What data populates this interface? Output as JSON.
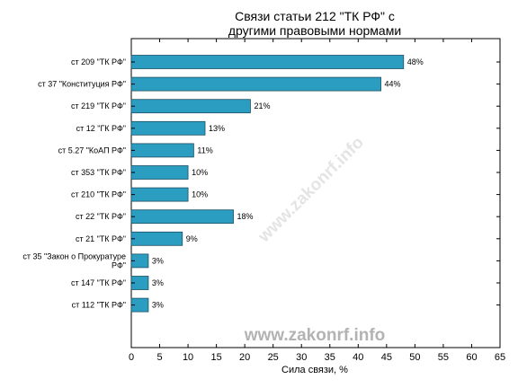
{
  "chart_data": {
    "type": "bar",
    "orientation": "horizontal",
    "title_lines": [
      "Связи статьи 212 \"ТК РФ\" с",
      "другими правовыми нормами"
    ],
    "xlabel": "Сила связи, %",
    "ylabel": "",
    "xlim": [
      0,
      65
    ],
    "xticks": [
      0,
      5,
      10,
      15,
      20,
      25,
      30,
      35,
      40,
      45,
      50,
      55,
      60,
      65
    ],
    "grid": false,
    "bar_color": "#2a9dc0",
    "categories": [
      [
        "ст 209 \"ТК РФ\""
      ],
      [
        "ст 37 \"Конституция РФ\""
      ],
      [
        "ст 219 \"ТК РФ\""
      ],
      [
        "ст 12 \"ГК РФ\""
      ],
      [
        "ст 5.27 \"КоАП РФ\""
      ],
      [
        "ст 353 \"ТК РФ\""
      ],
      [
        "ст 210 \"ТК РФ\""
      ],
      [
        "ст 22 \"ТК РФ\""
      ],
      [
        "ст 21 \"ТК РФ\""
      ],
      [
        "ст 35 \"Закон о Прокуратуре",
        "РФ\""
      ],
      [
        "ст 147 \"ТК РФ\""
      ],
      [
        "ст 112 \"ТК РФ\""
      ]
    ],
    "values": [
      48,
      44,
      21,
      13,
      11,
      10,
      10,
      18,
      9,
      3,
      3,
      3
    ],
    "value_labels": [
      "48%",
      "44%",
      "21%",
      "13%",
      "11%",
      "10%",
      "10%",
      "18%",
      "9%",
      "3%",
      "3%",
      "3%"
    ]
  },
  "watermark": {
    "main": "www.zakonrf.info",
    "diagonal": "www.zakonrf.info"
  }
}
